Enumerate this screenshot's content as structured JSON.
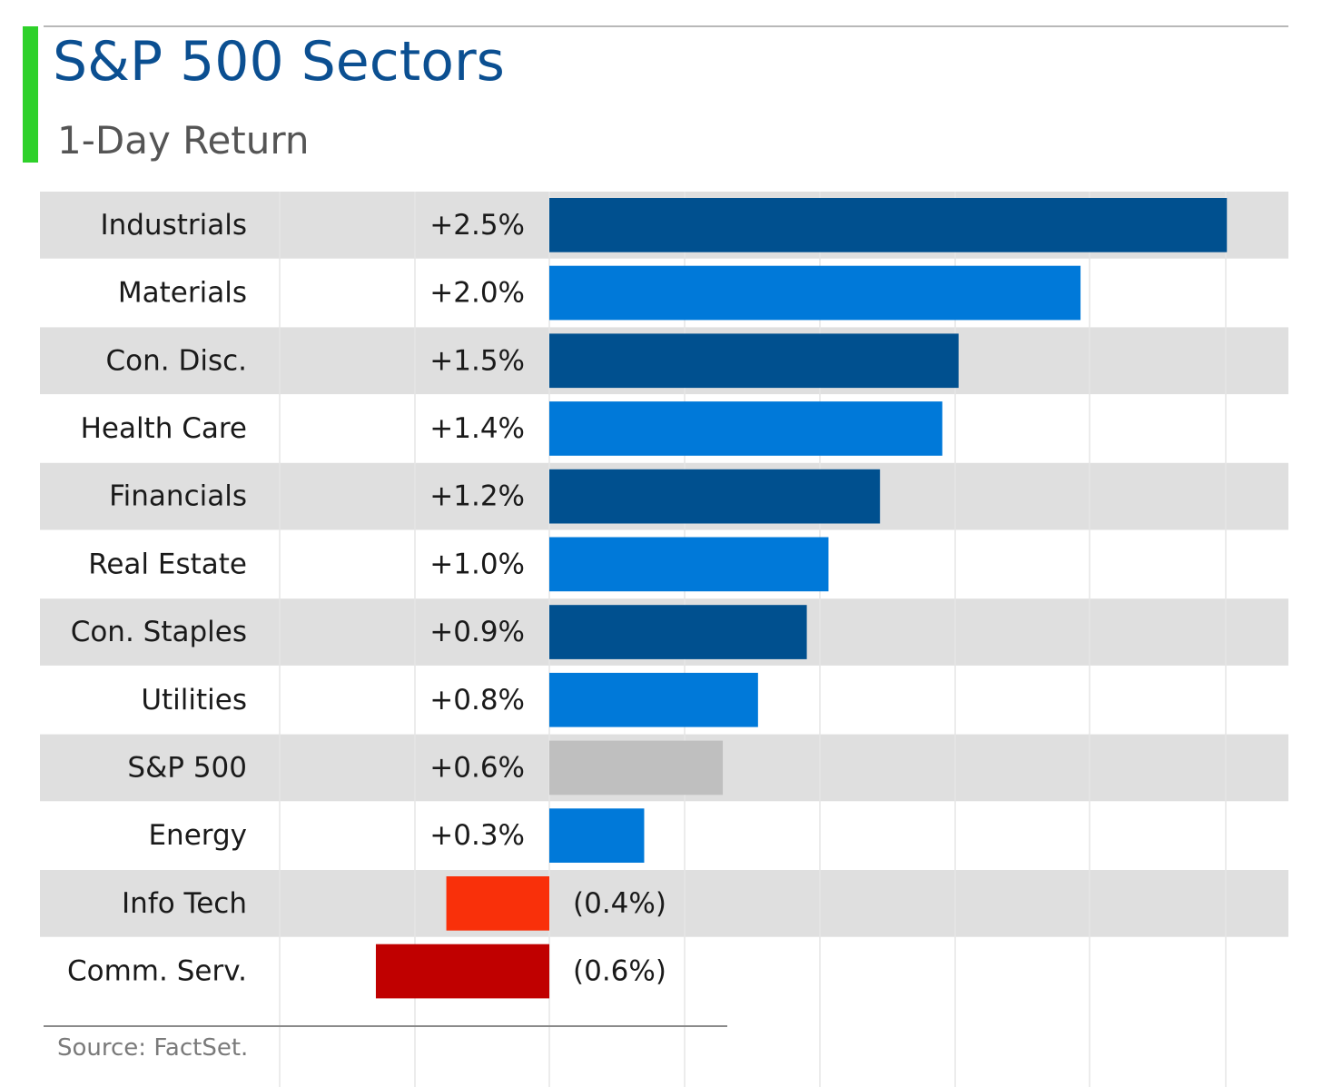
{
  "chart_data": {
    "type": "bar",
    "orientation": "horizontal",
    "title": "S&P 500 Sectors",
    "subtitle": "1-Day Return",
    "xlim": [
      -0.01,
      0.03
    ],
    "grid": true,
    "categories": [
      "Industrials",
      "Materials",
      "Con. Disc.",
      "Health Care",
      "Financials",
      "Real Estate",
      "Con. Staples",
      "Utilities",
      "S&P 500",
      "Energy",
      "Info Tech",
      "Comm. Serv."
    ],
    "values": [
      0.025,
      0.0196,
      0.0151,
      0.0145,
      0.0122,
      0.0103,
      0.0095,
      0.0077,
      0.0064,
      0.0035,
      -0.0038,
      -0.0064
    ],
    "value_labels": [
      "+2.5%",
      "+2.0%",
      "+1.5%",
      "+1.4%",
      "+1.2%",
      "+1.0%",
      "+0.9%",
      "+0.8%",
      "+0.6%",
      "+0.3%",
      "(0.4%)",
      "(0.6%)"
    ],
    "bar_colors": [
      "#00508f",
      "#0079d9",
      "#00508f",
      "#0079d9",
      "#00508f",
      "#0079d9",
      "#00508f",
      "#0079d9",
      "#bfbfbf",
      "#0079d9",
      "#f9300a",
      "#c00000"
    ]
  },
  "colors": {
    "title": "#0b4f91",
    "subtitle": "#555555",
    "accent": "#2ed12a",
    "row_band": "#dfdfdf",
    "gridline": "#e6e6e6"
  },
  "source": "Source: FactSet."
}
